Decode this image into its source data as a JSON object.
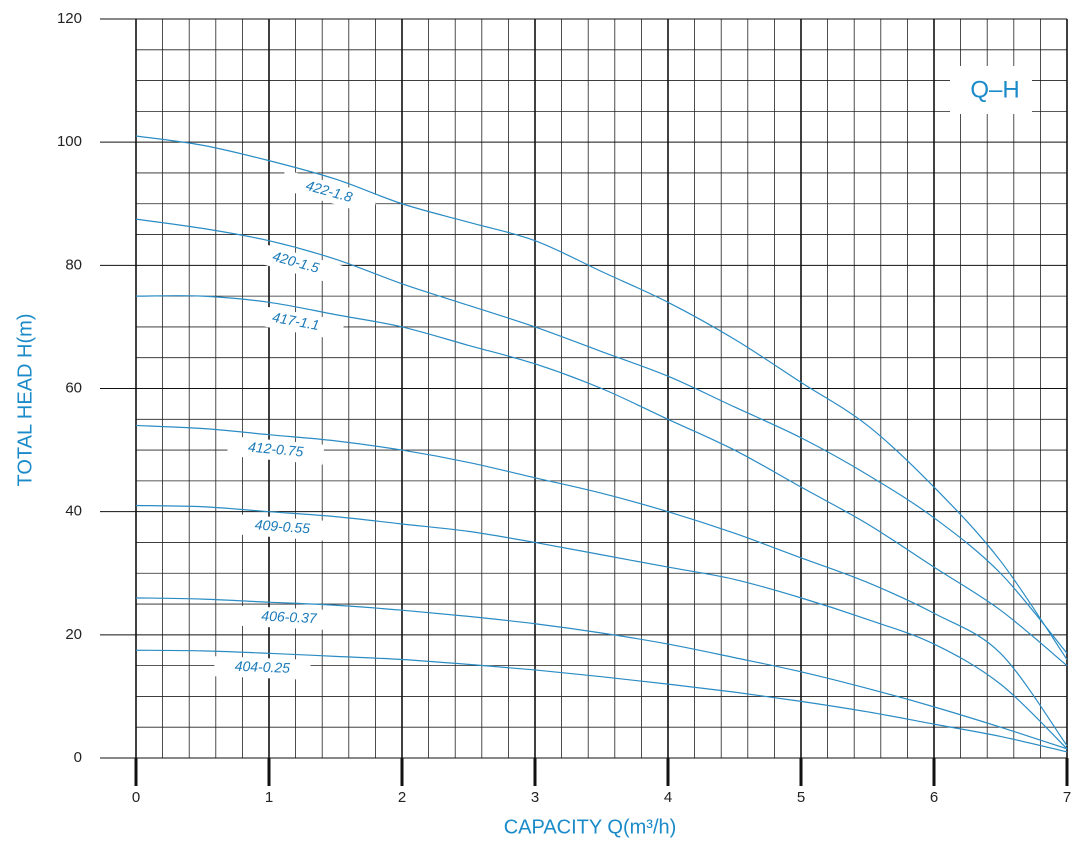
{
  "chart_data": {
    "type": "line",
    "annotation": "Q–H",
    "x_label": "CAPACITY Q(m³/h)",
    "y_label": "TOTAL HEAD H(m)",
    "x": [
      0,
      0.5,
      1,
      1.5,
      2,
      2.5,
      3,
      3.5,
      4,
      4.5,
      5,
      5.5,
      6,
      6.5,
      7
    ],
    "series": [
      {
        "name": "422-1.8",
        "color": "#2a8cc4",
        "values": [
          101,
          99.5,
          97,
          94,
          90,
          87,
          84,
          79,
          74,
          68,
          61,
          54,
          44,
          32,
          16
        ]
      },
      {
        "name": "420-1.5",
        "color": "#2a8cc4",
        "values": [
          87.5,
          86,
          84,
          81,
          77,
          73.5,
          70,
          66,
          62,
          57,
          52,
          46,
          39,
          30,
          17
        ]
      },
      {
        "name": "417-1.1",
        "color": "#2a8cc4",
        "values": [
          75,
          75,
          74,
          72,
          70,
          67,
          64,
          60,
          55,
          50,
          44,
          38,
          31,
          24,
          15
        ]
      },
      {
        "name": "412-0.75",
        "color": "#2a8cc4",
        "values": [
          54,
          53.5,
          52.5,
          51.5,
          50,
          48,
          45.5,
          43,
          40,
          36.5,
          32.5,
          28.5,
          23.5,
          17,
          2
        ]
      },
      {
        "name": "409-0.55",
        "color": "#2a8cc4",
        "values": [
          41,
          40.8,
          40,
          39.2,
          38,
          36.8,
          35,
          33,
          31,
          29,
          26,
          22.5,
          18.5,
          12,
          1.5
        ]
      },
      {
        "name": "406-0.37",
        "color": "#2a8cc4",
        "values": [
          26,
          25.8,
          25.3,
          24.8,
          24,
          23,
          21.8,
          20.3,
          18.5,
          16.3,
          14,
          11.3,
          8.3,
          5,
          1.5
        ]
      },
      {
        "name": "404-0.25",
        "color": "#2a8cc4",
        "values": [
          17.5,
          17.4,
          17,
          16.5,
          16,
          15.2,
          14.3,
          13.2,
          12,
          10.7,
          9.2,
          7.5,
          5.5,
          3.5,
          1
        ]
      }
    ],
    "xlim": [
      0,
      7
    ],
    "xticks": [
      0,
      1,
      2,
      3,
      4,
      5,
      6,
      7
    ],
    "ylim": [
      0,
      120
    ],
    "yticks": [
      0,
      20,
      40,
      60,
      80,
      100,
      120
    ],
    "grid": true
  }
}
